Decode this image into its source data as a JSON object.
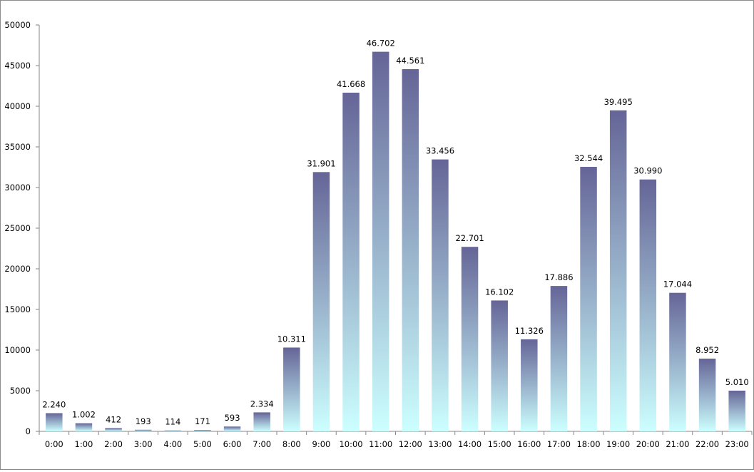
{
  "chart_data": {
    "type": "bar",
    "title": "",
    "xlabel": "",
    "ylabel": "",
    "ylim": [
      0,
      50000
    ],
    "yticks": [
      0,
      5000,
      10000,
      15000,
      20000,
      25000,
      30000,
      35000,
      40000,
      45000,
      50000
    ],
    "ytick_labels": [
      "0",
      "5000",
      "10000",
      "15000",
      "20000",
      "25000",
      "30000",
      "35000",
      "40000",
      "45000",
      "50000"
    ],
    "grid": false,
    "legend": "none",
    "categories": [
      "0:00",
      "1:00",
      "2:00",
      "3:00",
      "4:00",
      "5:00",
      "6:00",
      "7:00",
      "8:00",
      "9:00",
      "10:00",
      "11:00",
      "12:00",
      "13:00",
      "14:00",
      "15:00",
      "16:00",
      "17:00",
      "18:00",
      "19:00",
      "20:00",
      "21:00",
      "22:00",
      "23:00"
    ],
    "values": [
      2240,
      1002,
      412,
      193,
      114,
      171,
      593,
      2334,
      10311,
      31901,
      41668,
      46702,
      44561,
      33456,
      22701,
      16102,
      11326,
      17886,
      32544,
      39495,
      30990,
      17044,
      8952,
      5010
    ],
    "data_labels": [
      "2.240",
      "1.002",
      "412",
      "193",
      "114",
      "171",
      "593",
      "2.334",
      "10.311",
      "31.901",
      "41.668",
      "46.702",
      "44.561",
      "33.456",
      "22.701",
      "16.102",
      "11.326",
      "17.886",
      "32.544",
      "39.495",
      "30.990",
      "17.044",
      "8.952",
      "5.010"
    ],
    "colors": {
      "bar_top": "#656597",
      "bar_bottom": "#ccffff",
      "axis": "#868686",
      "text": "#000000"
    }
  }
}
